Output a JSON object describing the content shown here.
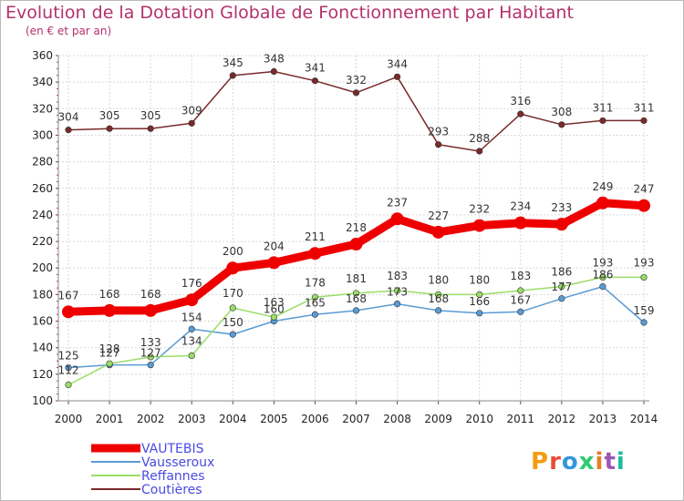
{
  "header": {
    "title": "Evolution de la Dotation Globale de Fonctionnement par Habitant",
    "subtitle": "(en € et par an)"
  },
  "logo": {
    "text": "Proxiti",
    "letters": [
      "P",
      "r",
      "o",
      "x",
      "i",
      "t",
      "i"
    ]
  },
  "chart_data": {
    "type": "line",
    "x": [
      2000,
      2001,
      2002,
      2003,
      2004,
      2005,
      2006,
      2007,
      2008,
      2009,
      2010,
      2011,
      2012,
      2013,
      2014
    ],
    "ylim": [
      100,
      360
    ],
    "yticks": [
      100,
      120,
      140,
      160,
      180,
      200,
      220,
      240,
      260,
      280,
      300,
      320,
      340,
      360
    ],
    "grid": true,
    "legend_position": "bottom-left",
    "series": [
      {
        "name": "VAUTEBIS",
        "color": "#ee0000",
        "emphasis": true,
        "values": [
          167,
          168,
          168,
          176,
          200,
          204,
          211,
          218,
          237,
          227,
          232,
          234,
          233,
          249,
          247
        ]
      },
      {
        "name": "Vausseroux",
        "color": "#5b9bd5",
        "emphasis": false,
        "values": [
          125,
          127,
          127,
          154,
          150,
          160,
          165,
          168,
          173,
          168,
          166,
          167,
          177,
          186,
          159
        ]
      },
      {
        "name": "Reffannes",
        "color": "#99dd66",
        "emphasis": false,
        "values": [
          112,
          128,
          133,
          134,
          170,
          163,
          178,
          181,
          183,
          180,
          180,
          183,
          186,
          193,
          193
        ]
      },
      {
        "name": "Coutières",
        "color": "#7a2a2a",
        "emphasis": false,
        "values": [
          304,
          305,
          305,
          309,
          345,
          348,
          341,
          332,
          344,
          293,
          288,
          316,
          308,
          311,
          311
        ]
      }
    ]
  }
}
